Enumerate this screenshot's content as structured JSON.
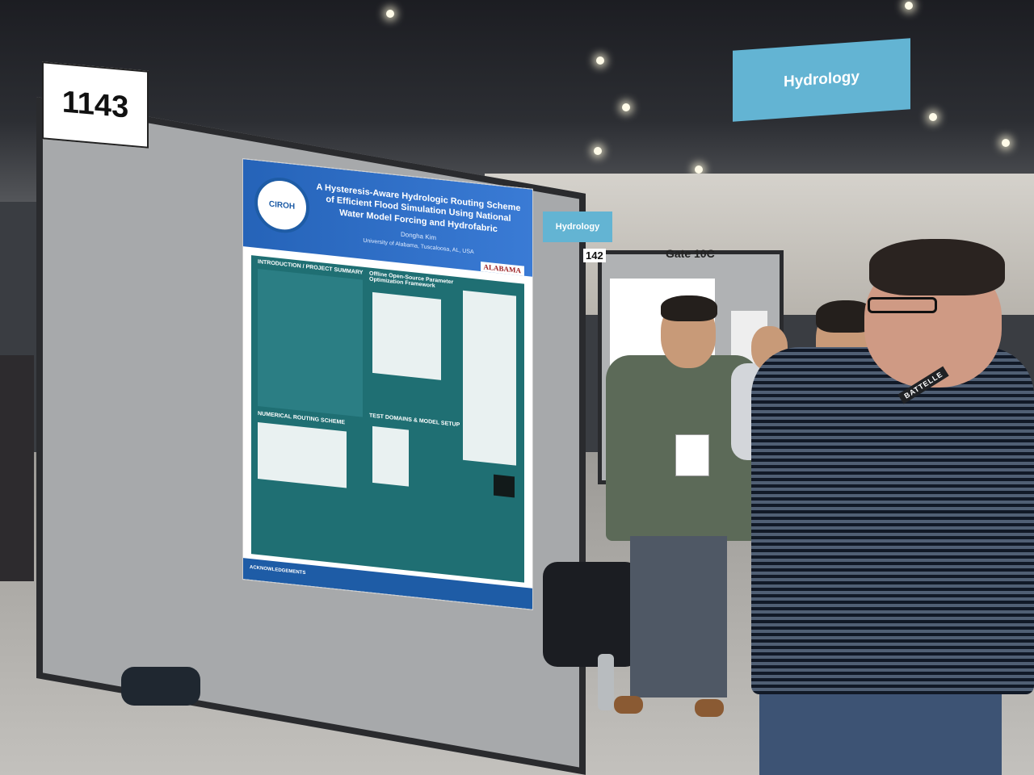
{
  "booth": {
    "number": "1143",
    "adjacent_number": "142",
    "gate": "Gate 10C"
  },
  "signs": {
    "topic": "Hydrology",
    "topic_far": "Hydrology"
  },
  "poster": {
    "logo": "CIROH",
    "title": "A Hysteresis-Aware Hydrologic Routing Scheme of Efficient Flood Simulation Using National Water Model Forcing and Hydrofabric",
    "author": "Dongha Kim",
    "affiliation": "University of Alabama, Tuscaloosa, AL, USA",
    "institution": "ALABAMA",
    "sections": {
      "intro": "INTRODUCTION / PROJECT SUMMARY",
      "routing": "NUMERICAL ROUTING SCHEME",
      "framework": "Offline Open-Source Parameter Optimization Framework",
      "test": "TEST DOMAINS & MODEL SETUP",
      "ack": "ACKNOWLEDGEMENTS"
    }
  },
  "lanyard": {
    "text": "BATTELLE"
  },
  "colors": {
    "sign_blue": "#63b4d3",
    "poster_blue": "#1e5ca6",
    "poster_teal": "#1f6f73",
    "board_gray": "#a7a9ab"
  }
}
